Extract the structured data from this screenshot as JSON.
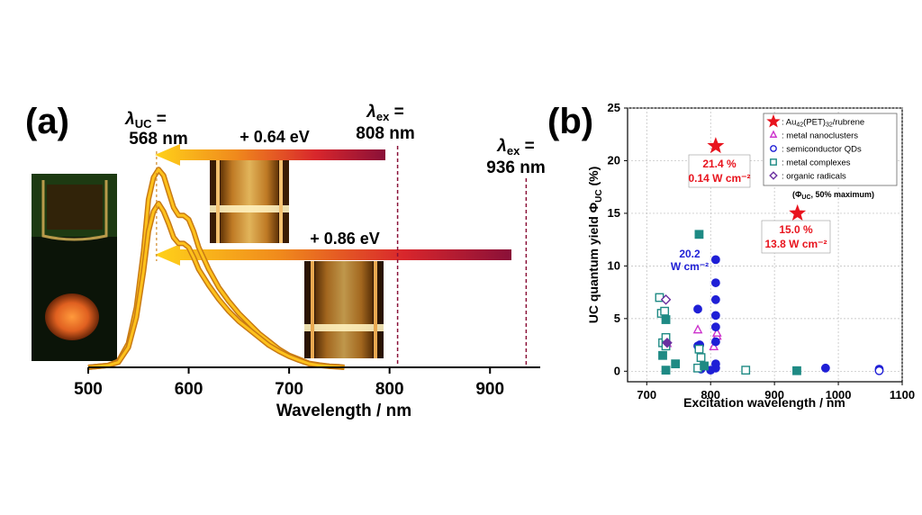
{
  "chart_data": [
    {
      "panel": "(a)",
      "type": "line",
      "xlabel": "Wavelength / nm",
      "xlim": [
        500,
        950
      ],
      "xticks": [
        500,
        600,
        700,
        800,
        900
      ],
      "series": [
        {
          "name": "upconverted emission (upper)",
          "x": [
            500,
            510,
            520,
            530,
            540,
            548,
            555,
            560,
            565,
            570,
            575,
            580,
            585,
            590,
            595,
            600,
            605,
            610,
            620,
            630,
            640,
            650,
            660,
            670,
            680,
            690,
            700,
            710,
            720,
            730,
            740,
            750,
            755
          ],
          "y": [
            0,
            0.005,
            0.01,
            0.03,
            0.12,
            0.3,
            0.58,
            0.84,
            0.95,
            0.99,
            0.96,
            0.88,
            0.8,
            0.76,
            0.76,
            0.74,
            0.68,
            0.6,
            0.49,
            0.4,
            0.33,
            0.27,
            0.22,
            0.17,
            0.13,
            0.09,
            0.06,
            0.04,
            0.02,
            0.012,
            0.006,
            0.003,
            0
          ]
        },
        {
          "name": "upconverted emission (lower)",
          "x": [
            500,
            510,
            520,
            530,
            540,
            548,
            555,
            560,
            565,
            570,
            575,
            580,
            585,
            590,
            595,
            600,
            605,
            610,
            620,
            630,
            640,
            650,
            660,
            670,
            680,
            690,
            700,
            710,
            720,
            730,
            740,
            750,
            755
          ],
          "y": [
            0,
            0.005,
            0.01,
            0.025,
            0.1,
            0.25,
            0.48,
            0.68,
            0.78,
            0.82,
            0.78,
            0.72,
            0.65,
            0.62,
            0.62,
            0.6,
            0.55,
            0.49,
            0.41,
            0.34,
            0.28,
            0.23,
            0.19,
            0.15,
            0.11,
            0.08,
            0.055,
            0.035,
            0.018,
            0.01,
            0.005,
            0.002,
            0
          ]
        }
      ],
      "annotations": {
        "lambda_uc": {
          "symbol": "λ",
          "sub": "UC",
          "eq": " =",
          "value": "568 nm",
          "x": 568
        },
        "lambda_ex1": {
          "symbol": "λ",
          "sub": "ex",
          "eq": " =",
          "value": "808 nm",
          "x": 808
        },
        "lambda_ex2": {
          "symbol": "λ",
          "sub": "ex",
          "eq": " =",
          "value": "936 nm",
          "x": 936
        },
        "shift1": "+ 0.64 eV",
        "shift2": "+ 0.86 eV"
      }
    },
    {
      "panel": "(b)",
      "type": "scatter",
      "xlabel": "Excitation wavelength / nm",
      "ylabel": {
        "text": "UC quantum yield Φ",
        "sub": "UC",
        "unit": " (%)"
      },
      "xlim": [
        670,
        1100
      ],
      "ylim": [
        -1,
        25
      ],
      "xticks": [
        700,
        800,
        900,
        1000,
        1100
      ],
      "yticks": [
        0,
        5,
        10,
        15,
        20,
        25
      ],
      "grid": true,
      "legend_position": "top-right",
      "legend_note": {
        "pre": "(Φ",
        "sub": "UC",
        "post": ", 50% maximum)"
      },
      "series": [
        {
          "name": "Au42(PET)32/rubrene",
          "label": {
            "pre": ": Au",
            "s1": "42",
            "mid": "(PET)",
            "s2": "32",
            "post": "/rubrene"
          },
          "marker": "star",
          "color": "#e8141e",
          "points": [
            [
              808,
              21.4
            ],
            [
              936,
              15.0
            ]
          ]
        },
        {
          "name": "metal nanoclusters",
          "label": {
            "pre": ": metal nanoclusters"
          },
          "marker": "triangle",
          "color": "#cc33cc",
          "points": [
            [
              732,
              2.6
            ],
            [
              780,
              3.9
            ],
            [
              805,
              2.3
            ],
            [
              810,
              3.3
            ],
            [
              810,
              3.6
            ]
          ]
        },
        {
          "name": "semiconductor QDs",
          "label": {
            "pre": ": semiconductor QDs"
          },
          "marker": "circle",
          "color": "#1f1fd6",
          "points": [
            [
              780,
              5.9
            ],
            [
              780,
              2.4
            ],
            [
              783,
              2.5
            ],
            [
              785,
              0.2
            ],
            [
              800,
              0.1
            ],
            [
              808,
              10.6
            ],
            [
              808,
              8.4
            ],
            [
              808,
              6.8
            ],
            [
              808,
              5.3
            ],
            [
              808,
              4.2
            ],
            [
              808,
              2.8
            ],
            [
              808,
              0.7
            ],
            [
              808,
              0.3
            ],
            [
              980,
              0.3
            ],
            [
              1064,
              0.2
            ],
            [
              1064,
              0.05
            ]
          ]
        },
        {
          "name": "metal complexes",
          "label": {
            "pre": ": metal complexes"
          },
          "marker": "square",
          "color": "#1e8a84",
          "points": [
            [
              720,
              7.0
            ],
            [
              723,
              5.5
            ],
            [
              725,
              1.5
            ],
            [
              725,
              2.7
            ],
            [
              728,
              5.7
            ],
            [
              730,
              4.9
            ],
            [
              730,
              3.2
            ],
            [
              730,
              2.4
            ],
            [
              730,
              0.1
            ],
            [
              745,
              0.7
            ],
            [
              780,
              0.3
            ],
            [
              782,
              13.0
            ],
            [
              782,
              2.1
            ],
            [
              785,
              1.3
            ],
            [
              790,
              0.5
            ],
            [
              855,
              0.1
            ],
            [
              935,
              0.05
            ]
          ]
        },
        {
          "name": "organic radicals",
          "label": {
            "pre": ": organic radicals"
          },
          "marker": "diamond",
          "color": "#6a2fa0",
          "points": [
            [
              730,
              6.8
            ],
            [
              732,
              2.7
            ]
          ]
        }
      ],
      "annotations": [
        {
          "text": "21.4 %",
          "x": 808,
          "y": 21.4,
          "color": "#e8141e"
        },
        {
          "text": "0.14 W cm⁻²",
          "x": 808,
          "y": 21.4,
          "color": "#e8141e"
        },
        {
          "text": "15.0 %",
          "x": 936,
          "y": 15.0,
          "color": "#e8141e"
        },
        {
          "text": "13.8 W cm⁻²",
          "x": 936,
          "y": 15.0,
          "color": "#e8141e"
        },
        {
          "text": "20.2",
          "x": 808,
          "y": 10.6,
          "color": "#1f1fd6"
        },
        {
          "text": "W cm⁻²",
          "x": 808,
          "y": 10.6,
          "color": "#1f1fd6"
        }
      ]
    }
  ]
}
